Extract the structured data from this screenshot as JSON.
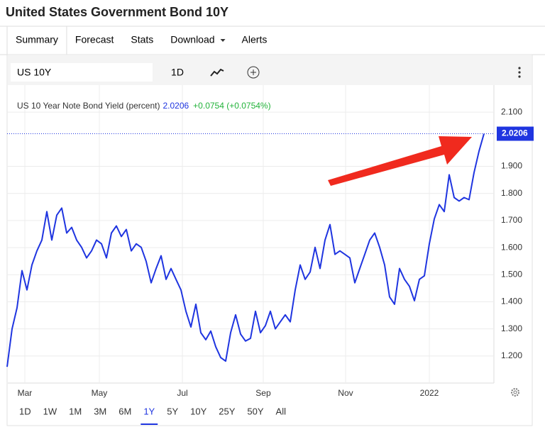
{
  "header": {
    "title": "United States Government Bond 10Y"
  },
  "tabs": [
    "Summary",
    "Forecast",
    "Stats",
    "Download",
    "Alerts"
  ],
  "toolbar": {
    "symbol": "US 10Y",
    "interval": "1D"
  },
  "chart_data": {
    "type": "line",
    "change": "+0.0754 (+0.0754%)",
    "last_value": {
      "value": 2.0206,
      "label": "2.0206"
    },
    "x": [
      0,
      1,
      2,
      3,
      4,
      5,
      6,
      7,
      8,
      9,
      10,
      11,
      12,
      13,
      14,
      15,
      16,
      17,
      18,
      19,
      20,
      21,
      22,
      23,
      24,
      25,
      26,
      27,
      28,
      29,
      30,
      31,
      32,
      33,
      34,
      35,
      36,
      37,
      38,
      39,
      40,
      41,
      42,
      43,
      44,
      45,
      46,
      47,
      48,
      49,
      50,
      51,
      52,
      53,
      54,
      55,
      56,
      57,
      58,
      59,
      60,
      61,
      62,
      63,
      64,
      65,
      66,
      67,
      68,
      69,
      70,
      71,
      72,
      73,
      74,
      75,
      76,
      77,
      78,
      79,
      80,
      81,
      82,
      83,
      84,
      85,
      86,
      87,
      88,
      89,
      90,
      91,
      92,
      93,
      94,
      95,
      96
    ],
    "series": [
      {
        "name": "US 10 Year Note Bond Yield (percent)",
        "color": "#1f35e0",
        "values": [
          1.16,
          1.3,
          1.378,
          1.515,
          1.444,
          1.536,
          1.588,
          1.628,
          1.733,
          1.628,
          1.72,
          1.746,
          1.654,
          1.675,
          1.628,
          1.601,
          1.562,
          1.588,
          1.628,
          1.614,
          1.562,
          1.654,
          1.68,
          1.641,
          1.667,
          1.588,
          1.614,
          1.601,
          1.549,
          1.47,
          1.523,
          1.57,
          1.483,
          1.523,
          1.483,
          1.444,
          1.365,
          1.307,
          1.391,
          1.286,
          1.26,
          1.292,
          1.234,
          1.194,
          1.181,
          1.286,
          1.352,
          1.281,
          1.255,
          1.265,
          1.365,
          1.286,
          1.312,
          1.365,
          1.3,
          1.326,
          1.352,
          1.326,
          1.444,
          1.536,
          1.483,
          1.51,
          1.601,
          1.523,
          1.628,
          1.685,
          1.575,
          1.588,
          1.575,
          1.562,
          1.47,
          1.523,
          1.575,
          1.628,
          1.654,
          1.601,
          1.536,
          1.418,
          1.391,
          1.523,
          1.483,
          1.457,
          1.404,
          1.483,
          1.496,
          1.614,
          1.706,
          1.759,
          1.733,
          1.869,
          1.785,
          1.772,
          1.785,
          1.777,
          1.877,
          1.956,
          2.0206
        ]
      }
    ],
    "xlim": [
      0,
      98
    ],
    "xticks": [
      {
        "value": 3.57,
        "label": "Mar"
      },
      {
        "value": 18.57,
        "label": "May"
      },
      {
        "value": 35.29,
        "label": "Jul"
      },
      {
        "value": 51.57,
        "label": "Sep"
      },
      {
        "value": 68.14,
        "label": "Nov"
      },
      {
        "value": 85,
        "label": "2022"
      }
    ],
    "ylim": [
      1.1,
      2.2
    ],
    "yticks": [
      {
        "value": 1.2,
        "label": "1.200"
      },
      {
        "value": 1.3,
        "label": "1.300"
      },
      {
        "value": 1.4,
        "label": "1.400"
      },
      {
        "value": 1.5,
        "label": "1.500"
      },
      {
        "value": 1.6,
        "label": "1.600"
      },
      {
        "value": 1.7,
        "label": "1.700"
      },
      {
        "value": 1.8,
        "label": "1.800"
      },
      {
        "value": 1.9,
        "label": "1.900"
      },
      {
        "value": 2.1,
        "label": "2.100"
      }
    ],
    "grid": true
  },
  "ranges": [
    "1D",
    "1W",
    "1M",
    "3M",
    "6M",
    "1Y",
    "5Y",
    "10Y",
    "25Y",
    "50Y",
    "All"
  ],
  "selected_range": "1Y"
}
